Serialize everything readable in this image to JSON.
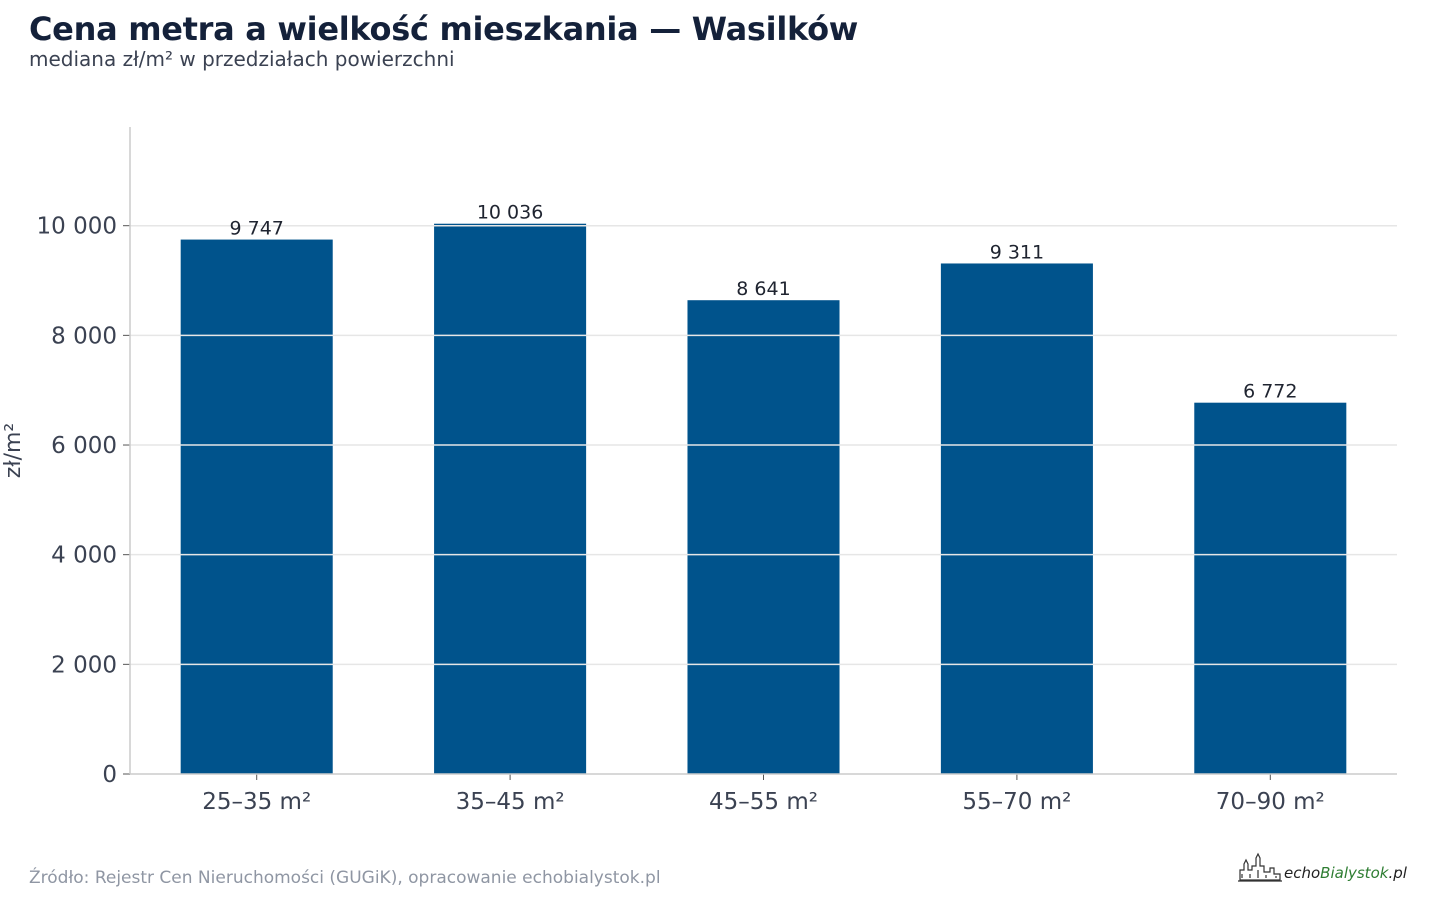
{
  "header": {
    "title": "Cena metra a wielkość mieszkania — Wasilków",
    "subtitle": "mediana zł/m² w przedziałach powierzchni"
  },
  "footer": {
    "source": "Źródło: Rejestr Cen Nieruchomości (GUGiK), opracowanie echobialystok.pl",
    "logo_text_dark": "echo",
    "logo_text_green": "Bialystok",
    "logo_text_suffix": ".pl"
  },
  "colors": {
    "bar": "#00538c",
    "grid": "#e6e6e6",
    "axis": "#cccccc",
    "text": "#3b4252",
    "logo_green": "#2e7d32"
  },
  "chart_data": {
    "type": "bar",
    "categories": [
      "25–35 m²",
      "35–45 m²",
      "45–55 m²",
      "55–70 m²",
      "70–90 m²"
    ],
    "values": [
      9747,
      10036,
      8641,
      9311,
      6772
    ],
    "value_labels": [
      "9 747",
      "10 036",
      "8 641",
      "9 311",
      "6 772"
    ],
    "ylabel": "zł/m²",
    "ylim": [
      0,
      11800
    ],
    "yticks": [
      0,
      2000,
      4000,
      6000,
      8000,
      10000
    ],
    "ytick_labels": [
      "0",
      "2 000",
      "4 000",
      "6 000",
      "8 000",
      "10 000"
    ],
    "grid": true,
    "grid_over_bars": true
  }
}
